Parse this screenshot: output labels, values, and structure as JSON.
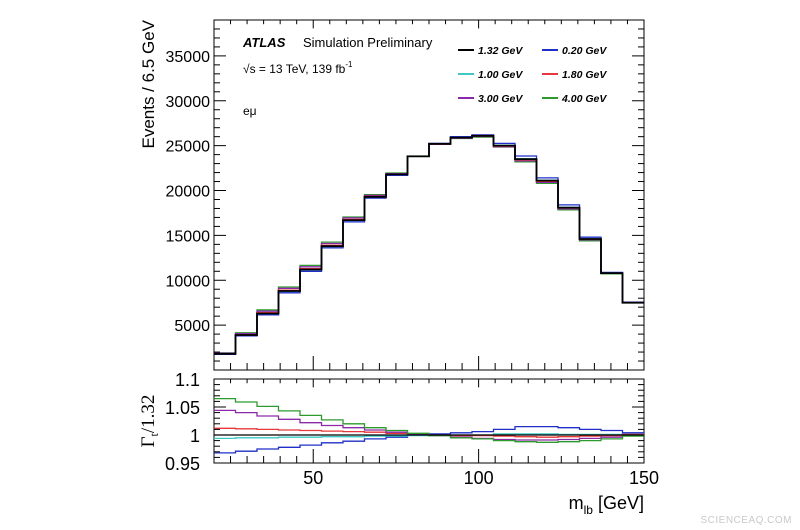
{
  "chart_data": [
    {
      "type": "line",
      "panel": "main",
      "title": "",
      "xlabel": "",
      "ylabel": "Events / 6.5 GeV",
      "xlim": [
        20,
        150
      ],
      "ylim": [
        0,
        39000
      ],
      "yticks": [
        5000,
        10000,
        15000,
        20000,
        25000,
        30000,
        35000
      ],
      "grid": false,
      "legend_position": "top-right",
      "annotations": {
        "experiment": "ATLAS",
        "label": "Simulation Preliminary",
        "energy": "√s = 13 TeV, 139 fb",
        "energy_sup": "-1",
        "channel": "eμ"
      },
      "bin_edges": [
        20,
        26.5,
        33,
        39.5,
        46,
        52.5,
        59,
        65.5,
        72,
        78.5,
        85,
        91.5,
        98,
        104.5,
        111,
        117.5,
        124,
        130.5,
        137,
        143.5,
        150
      ],
      "series": [
        {
          "name": "1.32 GeV",
          "color": "#000000",
          "values": [
            1800,
            3900,
            6300,
            8800,
            11200,
            13800,
            16700,
            19300,
            21800,
            23800,
            25200,
            25900,
            26100,
            25000,
            23500,
            21100,
            18100,
            14600,
            10800,
            7500
          ]
        },
        {
          "name": "0.20 GeV",
          "color": "#1f2fc8",
          "values": [
            1750,
            3800,
            6150,
            8600,
            11000,
            13600,
            16500,
            19150,
            21700,
            23800,
            25250,
            26000,
            26200,
            25250,
            23850,
            21400,
            18400,
            14800,
            10880,
            7550
          ]
        },
        {
          "name": "1.00 GeV",
          "color": "#3fc9c4",
          "values": [
            1790,
            3870,
            6250,
            8750,
            11150,
            13750,
            16650,
            19250,
            21780,
            23800,
            25210,
            25920,
            26120,
            25050,
            23550,
            21150,
            18130,
            14620,
            10810,
            7520
          ]
        },
        {
          "name": "1.80 GeV",
          "color": "#e8383a",
          "values": [
            1820,
            3950,
            6380,
            8900,
            11300,
            13900,
            16780,
            19350,
            21820,
            23800,
            25180,
            25880,
            26070,
            24950,
            23420,
            21030,
            18050,
            14570,
            10780,
            7530
          ]
        },
        {
          "name": "3.00 GeV",
          "color": "#8a2aa8",
          "values": [
            1880,
            4050,
            6550,
            9100,
            11500,
            14100,
            16950,
            19450,
            21880,
            23800,
            25150,
            25830,
            26020,
            24880,
            23300,
            20920,
            17950,
            14500,
            10760,
            7520
          ]
        },
        {
          "name": "4.00 GeV",
          "color": "#2c9a2c",
          "values": [
            1910,
            4150,
            6700,
            9250,
            11650,
            14250,
            17050,
            19550,
            21950,
            23850,
            25150,
            25800,
            25950,
            24850,
            23200,
            20800,
            17850,
            14400,
            10720,
            7500
          ]
        }
      ]
    },
    {
      "type": "line",
      "panel": "ratio",
      "title": "",
      "xlabel": "m",
      "xlabel_sub": "lb",
      "xlabel_unit": " [GeV]",
      "ylabel": "Γ",
      "ylabel_sub": "t",
      "ylabel_rest": "/1.32",
      "xlim": [
        20,
        150
      ],
      "ylim": [
        0.95,
        1.1
      ],
      "xticks": [
        50,
        100,
        150
      ],
      "yticks": [
        0.95,
        1,
        1.05,
        1.1
      ],
      "ytick_labels": [
        "0.95",
        "1",
        "1.05",
        "1.1"
      ],
      "grid": false,
      "bin_edges": [
        20,
        26.5,
        33,
        39.5,
        46,
        52.5,
        59,
        65.5,
        72,
        78.5,
        85,
        91.5,
        98,
        104.5,
        111,
        117.5,
        124,
        130.5,
        137,
        143.5,
        150
      ],
      "series": [
        {
          "name": "0.20 GeV",
          "color": "#1f2fc8",
          "values": [
            0.968,
            0.971,
            0.975,
            0.978,
            0.982,
            0.986,
            0.989,
            0.993,
            0.996,
            1.0,
            1.002,
            1.004,
            1.006,
            1.01,
            1.015,
            1.015,
            1.013,
            1.01,
            1.008,
            1.004
          ]
        },
        {
          "name": "1.00 GeV",
          "color": "#3fc9c4",
          "values": [
            0.994,
            0.995,
            0.995,
            0.996,
            0.996,
            0.997,
            0.997,
            0.998,
            0.998,
            0.999,
            0.999,
            1.0,
            1.0,
            1.002,
            1.002,
            1.002,
            1.001,
            1.001,
            1.001,
            1.001
          ]
        },
        {
          "name": "1.80 GeV",
          "color": "#e8383a",
          "values": [
            1.012,
            1.011,
            1.01,
            1.009,
            1.008,
            1.007,
            1.006,
            1.005,
            1.003,
            1.002,
            1.0,
            0.999,
            0.999,
            0.998,
            0.997,
            0.996,
            0.997,
            0.998,
            0.999,
            1.001
          ]
        },
        {
          "name": "3.00 GeV",
          "color": "#8a2aa8",
          "values": [
            1.044,
            1.04,
            1.034,
            1.028,
            1.022,
            1.017,
            1.013,
            1.009,
            1.005,
            1.002,
            0.999,
            0.996,
            0.994,
            0.992,
            0.991,
            0.991,
            0.992,
            0.994,
            0.996,
            1.0
          ]
        },
        {
          "name": "4.00 GeV",
          "color": "#2c9a2c",
          "values": [
            1.065,
            1.059,
            1.051,
            1.043,
            1.035,
            1.027,
            1.02,
            1.013,
            1.008,
            1.003,
            0.999,
            0.995,
            0.993,
            0.99,
            0.988,
            0.987,
            0.988,
            0.99,
            0.993,
            0.998
          ]
        },
        {
          "name": "1.32 GeV",
          "color": "#000000",
          "values": [
            1,
            1,
            1,
            1,
            1,
            1,
            1,
            1,
            1,
            1,
            1,
            1,
            1,
            1,
            1,
            1,
            1,
            1,
            1,
            1
          ]
        }
      ]
    }
  ],
  "footer": {
    "watermark": "SCIENCEAQ.COM"
  }
}
